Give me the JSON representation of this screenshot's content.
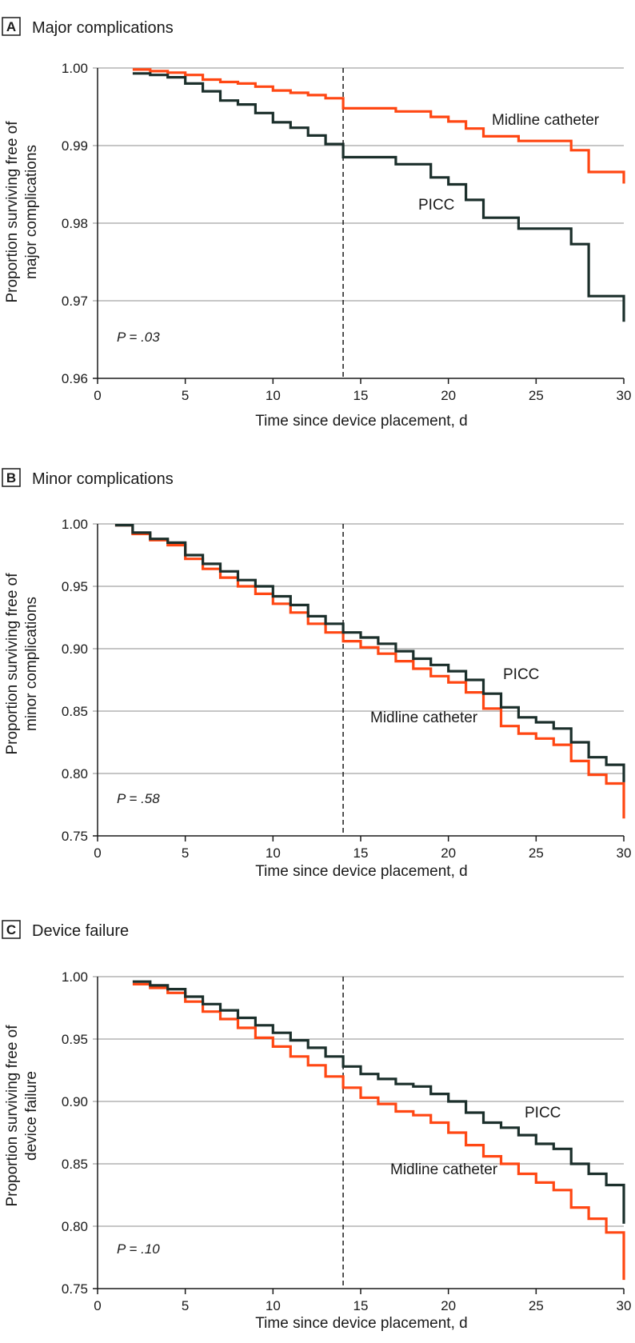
{
  "colors": {
    "picc": "#1b2f2b",
    "midline": "#ff4713",
    "grid": "#b4b4b4"
  },
  "chart_data": [
    {
      "type": "line",
      "panel": "A",
      "title": "Major complications",
      "xlabel": "Time since device placement, d",
      "ylabel_lines": [
        "Proportion surviving free of",
        "major complications"
      ],
      "xlim": [
        0,
        30
      ],
      "ylim": [
        0.96,
        1.0
      ],
      "xticks": [
        0,
        5,
        10,
        15,
        20,
        25,
        30
      ],
      "yticks": [
        0.96,
        0.97,
        0.98,
        0.99,
        1.0
      ],
      "ytick_labels": [
        "0.96",
        "0.97",
        "0.98",
        "0.99",
        "1.00"
      ],
      "vline_x": 14,
      "p_label": "P = .03",
      "series": [
        {
          "name": "PICC",
          "color": "#1b2f2b",
          "label_text": "PICC",
          "steps": [
            [
              2,
              0.9993
            ],
            [
              3,
              0.9991
            ],
            [
              4,
              0.9988
            ],
            [
              5,
              0.998
            ],
            [
              6,
              0.997
            ],
            [
              7,
              0.9958
            ],
            [
              8,
              0.9953
            ],
            [
              9,
              0.9942
            ],
            [
              10,
              0.993
            ],
            [
              11,
              0.9923
            ],
            [
              12,
              0.9913
            ],
            [
              13,
              0.9902
            ],
            [
              14,
              0.9885
            ],
            [
              17,
              0.9876
            ],
            [
              19,
              0.9859
            ],
            [
              20,
              0.985
            ],
            [
              21,
              0.983
            ],
            [
              22,
              0.9807
            ],
            [
              24,
              0.9793
            ],
            [
              27,
              0.9773
            ],
            [
              28,
              0.9706
            ],
            [
              30,
              0.9673
            ]
          ]
        },
        {
          "name": "Midline catheter",
          "color": "#ff4713",
          "label_text": "Midline catheter",
          "steps": [
            [
              2,
              0.9998
            ],
            [
              3,
              0.9996
            ],
            [
              4,
              0.9994
            ],
            [
              5,
              0.9991
            ],
            [
              6,
              0.9985
            ],
            [
              7,
              0.9982
            ],
            [
              8,
              0.998
            ],
            [
              9,
              0.9976
            ],
            [
              10,
              0.9971
            ],
            [
              11,
              0.9968
            ],
            [
              12,
              0.9965
            ],
            [
              13,
              0.9961
            ],
            [
              14,
              0.9948
            ],
            [
              17,
              0.9944
            ],
            [
              19,
              0.9937
            ],
            [
              20,
              0.9931
            ],
            [
              21,
              0.9922
            ],
            [
              22,
              0.9912
            ],
            [
              24,
              0.9906
            ],
            [
              27,
              0.9894
            ],
            [
              28,
              0.9866
            ],
            [
              30,
              0.9851
            ]
          ]
        }
      ]
    },
    {
      "type": "line",
      "panel": "B",
      "title": "Minor complications",
      "xlabel": "Time since device placement, d",
      "ylabel_lines": [
        "Proportion surviving free of",
        "minor complications"
      ],
      "xlim": [
        0,
        30
      ],
      "ylim": [
        0.75,
        1.0
      ],
      "xticks": [
        0,
        5,
        10,
        15,
        20,
        25,
        30
      ],
      "yticks": [
        0.75,
        0.8,
        0.85,
        0.9,
        0.95,
        1.0
      ],
      "ytick_labels": [
        "0.75",
        "0.80",
        "0.85",
        "0.90",
        "0.95",
        "1.00"
      ],
      "vline_x": 14,
      "p_label": "P = .58",
      "series": [
        {
          "name": "PICC",
          "color": "#1b2f2b",
          "label_text": "PICC",
          "steps": [
            [
              1,
              0.999
            ],
            [
              2,
              0.993
            ],
            [
              3,
              0.988
            ],
            [
              4,
              0.985
            ],
            [
              5,
              0.975
            ],
            [
              6,
              0.968
            ],
            [
              7,
              0.962
            ],
            [
              8,
              0.955
            ],
            [
              9,
              0.95
            ],
            [
              10,
              0.942
            ],
            [
              11,
              0.935
            ],
            [
              12,
              0.926
            ],
            [
              13,
              0.92
            ],
            [
              14,
              0.913
            ],
            [
              15,
              0.909
            ],
            [
              16,
              0.904
            ],
            [
              17,
              0.898
            ],
            [
              18,
              0.892
            ],
            [
              19,
              0.887
            ],
            [
              20,
              0.882
            ],
            [
              21,
              0.875
            ],
            [
              22,
              0.864
            ],
            [
              23,
              0.853
            ],
            [
              24,
              0.845
            ],
            [
              25,
              0.841
            ],
            [
              26,
              0.836
            ],
            [
              27,
              0.825
            ],
            [
              28,
              0.813
            ],
            [
              29,
              0.807
            ],
            [
              30,
              0.793
            ]
          ]
        },
        {
          "name": "Midline catheter",
          "color": "#ff4713",
          "label_text": "Midline catheter",
          "steps": [
            [
              1,
              0.999
            ],
            [
              2,
              0.992
            ],
            [
              3,
              0.987
            ],
            [
              4,
              0.983
            ],
            [
              5,
              0.972
            ],
            [
              6,
              0.964
            ],
            [
              7,
              0.957
            ],
            [
              8,
              0.95
            ],
            [
              9,
              0.944
            ],
            [
              10,
              0.936
            ],
            [
              11,
              0.929
            ],
            [
              12,
              0.92
            ],
            [
              13,
              0.913
            ],
            [
              14,
              0.906
            ],
            [
              15,
              0.901
            ],
            [
              16,
              0.896
            ],
            [
              17,
              0.89
            ],
            [
              18,
              0.884
            ],
            [
              19,
              0.878
            ],
            [
              20,
              0.873
            ],
            [
              21,
              0.865
            ],
            [
              22,
              0.852
            ],
            [
              23,
              0.838
            ],
            [
              24,
              0.832
            ],
            [
              25,
              0.828
            ],
            [
              26,
              0.823
            ],
            [
              27,
              0.81
            ],
            [
              28,
              0.799
            ],
            [
              29,
              0.792
            ],
            [
              30,
              0.764
            ]
          ]
        }
      ]
    },
    {
      "type": "line",
      "panel": "C",
      "title": "Device failure",
      "xlabel": "Time since device placement, d",
      "ylabel_lines": [
        "Proportion surviving free of",
        "device failure"
      ],
      "xlim": [
        0,
        30
      ],
      "ylim": [
        0.75,
        1.0
      ],
      "xticks": [
        0,
        5,
        10,
        15,
        20,
        25,
        30
      ],
      "yticks": [
        0.75,
        0.8,
        0.85,
        0.9,
        0.95,
        1.0
      ],
      "ytick_labels": [
        "0.75",
        "0.80",
        "0.85",
        "0.90",
        "0.95",
        "1.00"
      ],
      "vline_x": 14,
      "p_label": "P = .10",
      "series": [
        {
          "name": "PICC",
          "color": "#1b2f2b",
          "label_text": "PICC",
          "steps": [
            [
              2,
              0.996
            ],
            [
              3,
              0.993
            ],
            [
              4,
              0.99
            ],
            [
              5,
              0.984
            ],
            [
              6,
              0.978
            ],
            [
              7,
              0.973
            ],
            [
              8,
              0.967
            ],
            [
              9,
              0.961
            ],
            [
              10,
              0.955
            ],
            [
              11,
              0.949
            ],
            [
              12,
              0.943
            ],
            [
              13,
              0.936
            ],
            [
              14,
              0.928
            ],
            [
              15,
              0.922
            ],
            [
              16,
              0.918
            ],
            [
              17,
              0.914
            ],
            [
              18,
              0.912
            ],
            [
              19,
              0.906
            ],
            [
              20,
              0.9
            ],
            [
              21,
              0.891
            ],
            [
              22,
              0.883
            ],
            [
              23,
              0.879
            ],
            [
              24,
              0.873
            ],
            [
              25,
              0.866
            ],
            [
              26,
              0.862
            ],
            [
              27,
              0.85
            ],
            [
              28,
              0.842
            ],
            [
              29,
              0.833
            ],
            [
              30,
              0.802
            ]
          ]
        },
        {
          "name": "Midline catheter",
          "color": "#ff4713",
          "label_text": "Midline catheter",
          "steps": [
            [
              2,
              0.994
            ],
            [
              3,
              0.991
            ],
            [
              4,
              0.987
            ],
            [
              5,
              0.98
            ],
            [
              6,
              0.972
            ],
            [
              7,
              0.966
            ],
            [
              8,
              0.959
            ],
            [
              9,
              0.951
            ],
            [
              10,
              0.944
            ],
            [
              11,
              0.936
            ],
            [
              12,
              0.929
            ],
            [
              13,
              0.92
            ],
            [
              14,
              0.911
            ],
            [
              15,
              0.903
            ],
            [
              16,
              0.898
            ],
            [
              17,
              0.892
            ],
            [
              18,
              0.889
            ],
            [
              19,
              0.883
            ],
            [
              20,
              0.875
            ],
            [
              21,
              0.865
            ],
            [
              22,
              0.856
            ],
            [
              23,
              0.85
            ],
            [
              24,
              0.842
            ],
            [
              25,
              0.835
            ],
            [
              26,
              0.829
            ],
            [
              27,
              0.815
            ],
            [
              28,
              0.806
            ],
            [
              29,
              0.795
            ],
            [
              30,
              0.757
            ]
          ]
        }
      ]
    }
  ]
}
